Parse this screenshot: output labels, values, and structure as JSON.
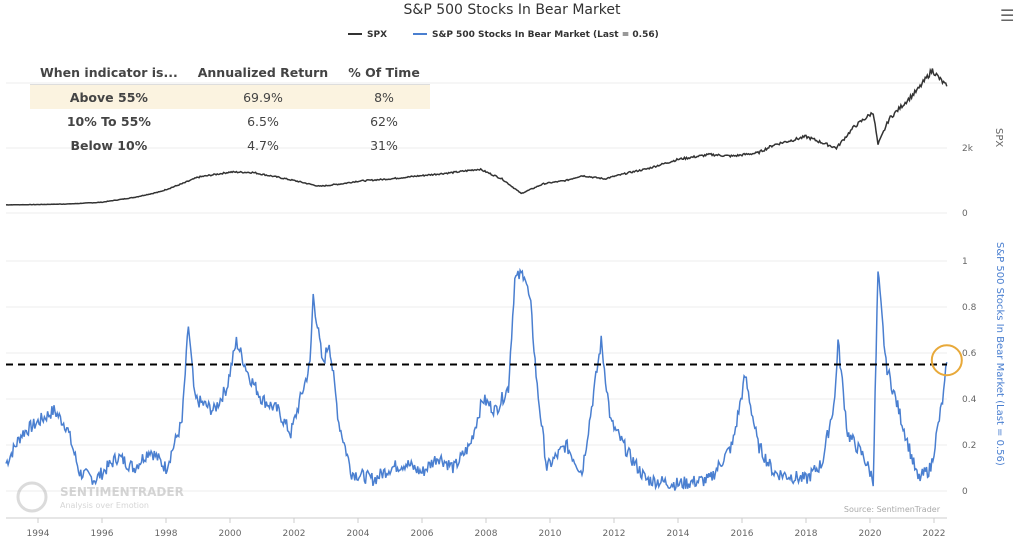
{
  "chart_data": [
    {
      "type": "line",
      "title": "S&P 500 Stocks In Bear Market",
      "legend": [
        {
          "name": "SPX",
          "color": "#333333"
        },
        {
          "name": "S&P 500 Stocks In Bear Market (Last = 0.56)",
          "color": "#4a7fd0"
        }
      ],
      "legend_placement": "top-center",
      "xlabel": "",
      "x_ticks": [
        "1994",
        "1996",
        "1998",
        "2000",
        "2002",
        "2004",
        "2006",
        "2008",
        "2010",
        "2012",
        "2014",
        "2016",
        "2018",
        "2020",
        "2022"
      ],
      "xlim": [
        1993,
        2022.4
      ],
      "panels": [
        {
          "name": "SPX",
          "ylabel": "SPX",
          "y_ticks": [
            "0",
            "2k"
          ],
          "ylim": [
            0,
            5000
          ],
          "color": "#333333",
          "x": [
            1993,
            1994,
            1995,
            1996,
            1997,
            1997.8,
            1998.5,
            1999,
            1999.5,
            2000,
            2000.7,
            2001.5,
            2002,
            2002.8,
            2003.5,
            2004,
            2005,
            2006,
            2007,
            2007.8,
            2008.5,
            2009.1,
            2009.8,
            2010.5,
            2011,
            2011.7,
            2012.5,
            2013,
            2014,
            2015,
            2015.7,
            2016.5,
            2017,
            2018,
            2018.95,
            2019.5,
            2020.1,
            2020.25,
            2020.6,
            2021,
            2021.5,
            2021.95,
            2022.2,
            2022.4
          ],
          "values": [
            250,
            260,
            280,
            330,
            480,
            650,
            900,
            1100,
            1180,
            1260,
            1250,
            1100,
            1000,
            820,
            900,
            980,
            1050,
            1150,
            1250,
            1350,
            1050,
            600,
            900,
            1000,
            1150,
            1050,
            1250,
            1350,
            1650,
            1800,
            1750,
            1850,
            2100,
            2350,
            2000,
            2650,
            3100,
            2100,
            2900,
            3300,
            3800,
            4400,
            4100,
            3900
          ]
        },
        {
          "name": "S&P 500 Stocks In Bear Market (Last = 0.56)",
          "ylabel": "S&P 500 Stocks In Bear Market (Last = 0.56)",
          "y_ticks": [
            "0",
            "0.2",
            "0.4",
            "0.6",
            "0.8",
            "1"
          ],
          "ylim": [
            0,
            1
          ],
          "color": "#4a7fd0",
          "threshold": 0.55,
          "x": [
            1993,
            1993.5,
            1994,
            1994.5,
            1994.9,
            1995.3,
            1995.8,
            1996.5,
            1997,
            1997.5,
            1998,
            1998.5,
            1998.7,
            1998.9,
            1999.5,
            1999.9,
            2000.2,
            2000.6,
            2001,
            2001.5,
            2001.9,
            2002.5,
            2002.6,
            2002.9,
            2003.1,
            2003.4,
            2003.8,
            2004.5,
            2005,
            2005.5,
            2006,
            2006.5,
            2007,
            2007.5,
            2007.9,
            2008.3,
            2008.7,
            2008.9,
            2009.2,
            2009.4,
            2009.6,
            2009.9,
            2010.5,
            2011,
            2011.6,
            2011.9,
            2012.5,
            2013,
            2014,
            2015,
            2015.7,
            2016.1,
            2016.5,
            2017,
            2018,
            2018.5,
            2018.9,
            2019,
            2019.3,
            2019.8,
            2020.1,
            2020.25,
            2020.5,
            2020.9,
            2021.5,
            2021.9,
            2022.3,
            2022.4
          ],
          "values": [
            0.12,
            0.25,
            0.3,
            0.35,
            0.28,
            0.08,
            0.05,
            0.15,
            0.1,
            0.18,
            0.1,
            0.3,
            0.72,
            0.4,
            0.35,
            0.45,
            0.65,
            0.5,
            0.4,
            0.35,
            0.25,
            0.55,
            0.85,
            0.55,
            0.65,
            0.3,
            0.08,
            0.05,
            0.1,
            0.12,
            0.08,
            0.15,
            0.1,
            0.2,
            0.4,
            0.35,
            0.45,
            0.92,
            0.95,
            0.8,
            0.45,
            0.1,
            0.2,
            0.08,
            0.65,
            0.3,
            0.15,
            0.05,
            0.03,
            0.05,
            0.2,
            0.5,
            0.2,
            0.08,
            0.05,
            0.12,
            0.4,
            0.65,
            0.25,
            0.15,
            0.05,
            0.95,
            0.55,
            0.35,
            0.05,
            0.1,
            0.42,
            0.56
          ]
        }
      ],
      "source": "Source: SentimenTrader"
    }
  ],
  "table": {
    "headers": [
      "When indicator is...",
      "Annualized Return",
      "% Of Time"
    ],
    "rows": [
      [
        "Above 55%",
        "69.9%",
        "8%"
      ],
      [
        "10% To 55%",
        "6.5%",
        "62%"
      ],
      [
        "Below 10%",
        "4.7%",
        "31%"
      ]
    ]
  },
  "watermark": {
    "brand": "SENTIMENTRADER",
    "tagline": "Analysis over Emotion"
  },
  "menu_icon": "hamburger-menu-icon"
}
